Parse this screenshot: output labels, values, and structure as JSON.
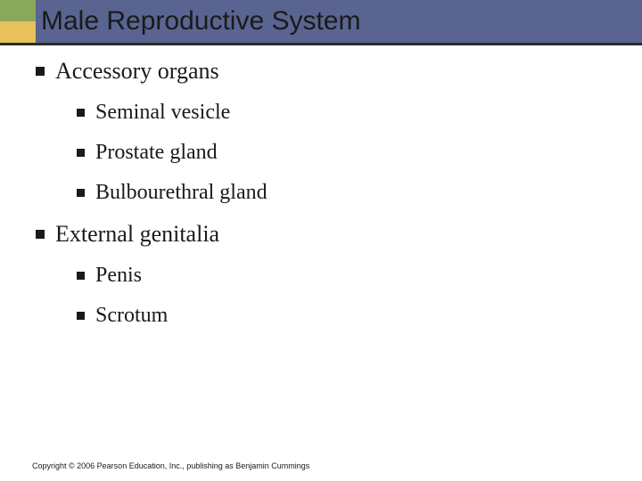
{
  "slide": {
    "title": "Male Reproductive System",
    "title_bar_color": "#5a6491",
    "accent_colors": [
      "#8aa85a",
      "#e8c15a"
    ],
    "title_fontsize": 30,
    "body_font": "Georgia, Times New Roman, serif",
    "level1_fontsize": 26,
    "level2_fontsize": 24,
    "bullet_color": "#1a1a1a",
    "text_color": "#1a1a1a",
    "background_color": "#ffffff",
    "items": [
      {
        "text": "Accessory organs",
        "children": [
          {
            "text": "Seminal vesicle"
          },
          {
            "text": "Prostate gland"
          },
          {
            "text": "Bulbourethral gland"
          }
        ]
      },
      {
        "text": "External genitalia",
        "children": [
          {
            "text": "Penis"
          },
          {
            "text": "Scrotum"
          }
        ]
      }
    ],
    "copyright": "Copyright © 2006 Pearson Education, Inc., publishing as Benjamin Cummings"
  }
}
